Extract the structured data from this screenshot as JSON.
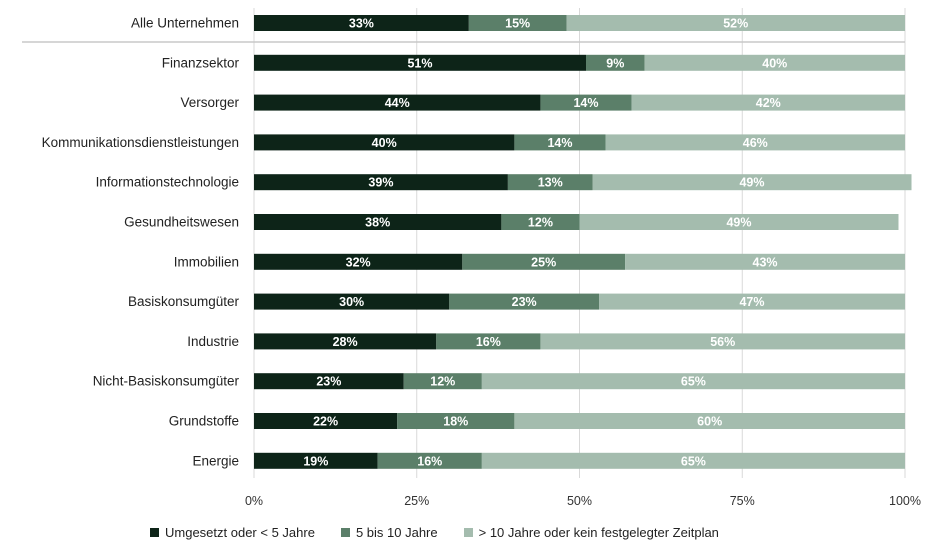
{
  "chart_data": {
    "type": "bar",
    "orientation": "horizontal",
    "stacked": true,
    "categories": [
      "Alle Unternehmen",
      "Finanzsektor",
      "Versorger",
      "Kommunikationsdienstleistungen",
      "Informationstechnologie",
      "Gesundheitswesen",
      "Immobilien",
      "Basiskonsumgüter",
      "Industrie",
      "Nicht-Basiskonsumgüter",
      "Grundstoffe",
      "Energie"
    ],
    "series": [
      {
        "name": "Umgesetzt oder < 5 Jahre",
        "color": "#0d2418",
        "values": [
          33,
          51,
          44,
          40,
          39,
          38,
          32,
          30,
          28,
          23,
          22,
          19
        ]
      },
      {
        "name": "5 bis 10 Jahre",
        "color": "#5b7f69",
        "values": [
          15,
          9,
          14,
          14,
          13,
          12,
          25,
          23,
          16,
          12,
          18,
          16
        ]
      },
      {
        "name": "> 10 Jahre oder kein festgelegter Zeitplan",
        "color": "#a4bcae",
        "values": [
          52,
          40,
          42,
          46,
          49,
          49,
          43,
          47,
          56,
          65,
          60,
          65
        ]
      }
    ],
    "data_labels": [
      [
        "33%",
        "15%",
        "52%"
      ],
      [
        "51%",
        "9%",
        "40%"
      ],
      [
        "44%",
        "14%",
        "42%"
      ],
      [
        "40%",
        "14%",
        "46%"
      ],
      [
        "39%",
        "13%",
        "49%"
      ],
      [
        "38%",
        "12%",
        "49%"
      ],
      [
        "32%",
        "25%",
        "43%"
      ],
      [
        "30%",
        "23%",
        "47%"
      ],
      [
        "28%",
        "16%",
        "56%"
      ],
      [
        "23%",
        "12%",
        "65%"
      ],
      [
        "22%",
        "18%",
        "60%"
      ],
      [
        "19%",
        "16%",
        "65%"
      ]
    ],
    "xlim": [
      0,
      100
    ],
    "xticks": [
      0,
      25,
      50,
      75,
      100
    ],
    "xtick_labels": [
      "0%",
      "25%",
      "50%",
      "75%",
      "100%"
    ],
    "grid": "vertical",
    "legend_position": "bottom",
    "separator_after_first_category": true
  }
}
